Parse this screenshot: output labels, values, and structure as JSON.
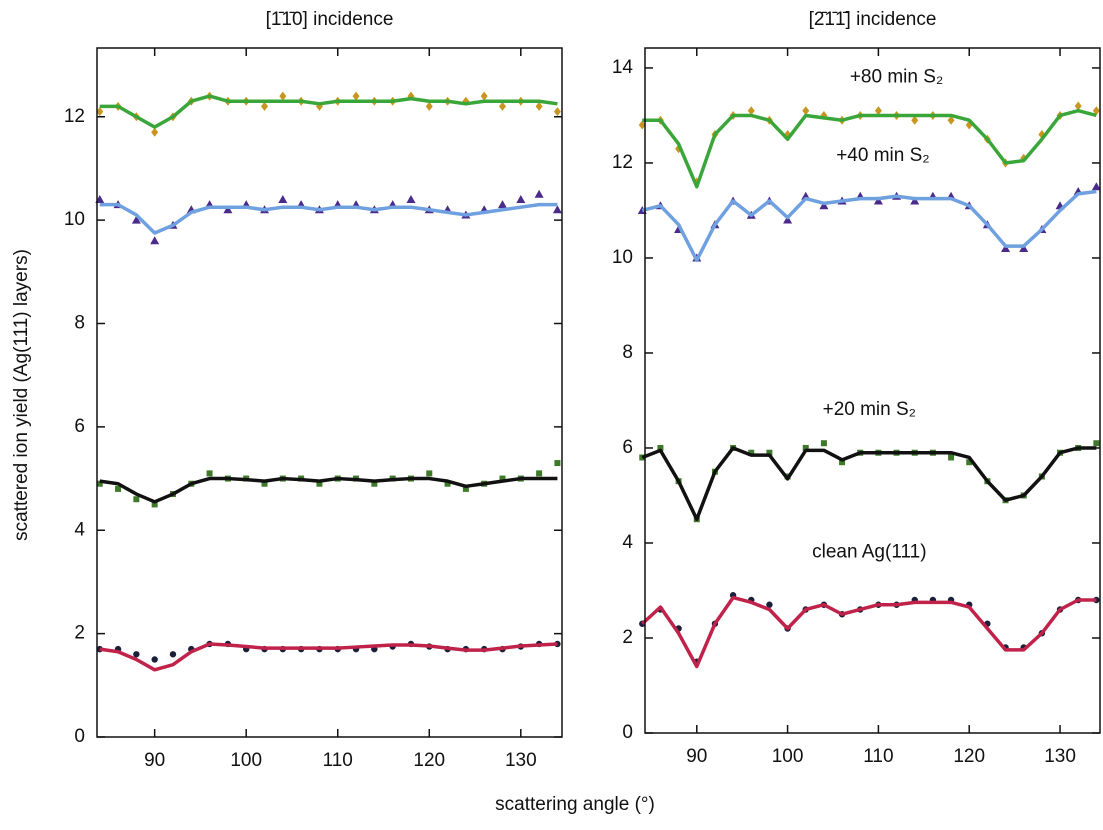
{
  "chart_data": [
    {
      "type": "line",
      "title": "[1̄1̄0] incidence",
      "ylabel": "scattered ion yield (Ag(111) layers)",
      "xlabel": "scattering angle (°)",
      "xlim": [
        83.7,
        134.5
      ],
      "ylim": [
        0,
        13.33
      ],
      "xticks": [
        90,
        100,
        110,
        120,
        130
      ],
      "yticks": [
        0,
        2,
        4,
        6,
        8,
        10,
        12
      ],
      "x": [
        84,
        86,
        88,
        90,
        92,
        94,
        96,
        98,
        100,
        102,
        104,
        106,
        108,
        110,
        112,
        114,
        116,
        118,
        120,
        122,
        124,
        126,
        128,
        130,
        132,
        134
      ],
      "series": [
        {
          "style": "scatter",
          "marker": "diamond",
          "color": "#c8961e",
          "values": [
            12.1,
            12.2,
            12.0,
            11.7,
            12.0,
            12.3,
            12.4,
            12.3,
            12.3,
            12.2,
            12.4,
            12.3,
            12.2,
            12.3,
            12.4,
            12.3,
            12.3,
            12.4,
            12.2,
            12.3,
            12.3,
            12.4,
            12.2,
            12.3,
            12.2,
            12.1
          ]
        },
        {
          "style": "line",
          "color": "#3aa63a",
          "values": [
            12.2,
            12.2,
            12.0,
            11.8,
            12.0,
            12.3,
            12.4,
            12.3,
            12.3,
            12.3,
            12.3,
            12.3,
            12.25,
            12.3,
            12.3,
            12.3,
            12.3,
            12.35,
            12.3,
            12.3,
            12.25,
            12.3,
            12.3,
            12.3,
            12.3,
            12.25
          ]
        },
        {
          "style": "scatter",
          "marker": "triangle",
          "color": "#4a2a8a",
          "values": [
            10.4,
            10.3,
            10.0,
            9.6,
            9.9,
            10.2,
            10.3,
            10.2,
            10.3,
            10.2,
            10.4,
            10.3,
            10.2,
            10.3,
            10.3,
            10.2,
            10.3,
            10.4,
            10.2,
            10.2,
            10.1,
            10.2,
            10.3,
            10.4,
            10.5,
            10.2
          ]
        },
        {
          "style": "line",
          "color": "#6fa0e0",
          "values": [
            10.3,
            10.3,
            10.1,
            9.75,
            9.9,
            10.15,
            10.25,
            10.25,
            10.25,
            10.2,
            10.25,
            10.25,
            10.2,
            10.25,
            10.25,
            10.2,
            10.25,
            10.25,
            10.2,
            10.15,
            10.1,
            10.15,
            10.2,
            10.25,
            10.3,
            10.3
          ]
        },
        {
          "style": "scatter",
          "marker": "square",
          "color": "#3f7a2a",
          "values": [
            4.9,
            4.8,
            4.6,
            4.5,
            4.7,
            4.9,
            5.1,
            5.0,
            5.0,
            4.9,
            5.0,
            5.0,
            4.9,
            5.0,
            5.0,
            4.9,
            5.0,
            5.0,
            5.1,
            4.9,
            4.8,
            4.9,
            5.0,
            5.0,
            5.1,
            5.3
          ]
        },
        {
          "style": "line",
          "color": "#111111",
          "values": [
            4.95,
            4.9,
            4.7,
            4.55,
            4.7,
            4.9,
            5.0,
            5.0,
            4.98,
            4.95,
            5.0,
            4.98,
            4.95,
            5.0,
            4.98,
            4.95,
            4.98,
            5.0,
            5.0,
            4.95,
            4.85,
            4.9,
            4.95,
            5.0,
            5.0,
            5.0
          ]
        },
        {
          "style": "scatter",
          "marker": "circle",
          "color": "#1a1f3a",
          "values": [
            1.7,
            1.7,
            1.6,
            1.5,
            1.6,
            1.7,
            1.8,
            1.8,
            1.7,
            1.7,
            1.7,
            1.7,
            1.7,
            1.7,
            1.7,
            1.7,
            1.75,
            1.8,
            1.75,
            1.7,
            1.7,
            1.7,
            1.7,
            1.75,
            1.8,
            1.8
          ]
        },
        {
          "style": "line",
          "color": "#c0224a",
          "values": [
            1.7,
            1.65,
            1.5,
            1.3,
            1.4,
            1.65,
            1.8,
            1.78,
            1.75,
            1.72,
            1.72,
            1.72,
            1.72,
            1.72,
            1.74,
            1.76,
            1.78,
            1.78,
            1.76,
            1.72,
            1.68,
            1.68,
            1.72,
            1.76,
            1.78,
            1.8
          ]
        }
      ]
    },
    {
      "type": "line",
      "title": "[2̄1̄1̄] incidence",
      "xlim": [
        84.3,
        134.4
      ],
      "ylim": [
        0,
        14.42
      ],
      "xticks": [
        90,
        100,
        110,
        120,
        130
      ],
      "yticks": [
        0,
        2,
        4,
        6,
        8,
        10,
        12,
        14
      ],
      "x": [
        84,
        86,
        88,
        90,
        92,
        94,
        96,
        98,
        100,
        102,
        104,
        106,
        108,
        110,
        112,
        114,
        116,
        118,
        120,
        122,
        124,
        126,
        128,
        130,
        132,
        134
      ],
      "annotations": [
        {
          "text": "+80 min S₂",
          "x": 112,
          "y": 13.8
        },
        {
          "text": "+40 min S₂",
          "x": 110.5,
          "y": 12.15
        },
        {
          "text": "+20 min S₂",
          "x": 109,
          "y": 6.8
        },
        {
          "text": "clean Ag(111)",
          "x": 109,
          "y": 3.8
        }
      ],
      "series": [
        {
          "style": "scatter",
          "marker": "diamond",
          "color": "#c8961e",
          "values": [
            12.8,
            12.9,
            12.3,
            11.6,
            12.6,
            13.0,
            13.1,
            12.9,
            12.6,
            13.1,
            13.0,
            12.9,
            13.0,
            13.1,
            13.0,
            12.9,
            13.0,
            12.9,
            12.8,
            12.5,
            12.0,
            12.1,
            12.6,
            13.0,
            13.2,
            13.1
          ]
        },
        {
          "style": "line",
          "color": "#3aa63a",
          "values": [
            12.9,
            12.9,
            12.4,
            11.5,
            12.6,
            13.0,
            13.0,
            12.9,
            12.5,
            13.0,
            12.95,
            12.9,
            13.0,
            13.0,
            13.0,
            13.0,
            13.0,
            13.0,
            12.9,
            12.5,
            12.0,
            12.05,
            12.5,
            13.0,
            13.1,
            13.0
          ]
        },
        {
          "style": "scatter",
          "marker": "triangle",
          "color": "#4a2a8a",
          "values": [
            11.0,
            11.1,
            10.6,
            10.0,
            10.7,
            11.2,
            10.9,
            11.2,
            10.8,
            11.3,
            11.1,
            11.2,
            11.3,
            11.2,
            11.3,
            11.2,
            11.3,
            11.3,
            11.1,
            10.7,
            10.2,
            10.2,
            10.6,
            11.1,
            11.4,
            11.5
          ]
        },
        {
          "style": "line",
          "color": "#6fa0e0",
          "values": [
            11.0,
            11.1,
            10.7,
            9.95,
            10.7,
            11.2,
            10.9,
            11.2,
            10.85,
            11.25,
            11.15,
            11.2,
            11.25,
            11.25,
            11.3,
            11.25,
            11.25,
            11.25,
            11.1,
            10.7,
            10.25,
            10.25,
            10.6,
            11.0,
            11.35,
            11.4
          ]
        },
        {
          "style": "scatter",
          "marker": "square",
          "color": "#3f7a2a",
          "values": [
            5.8,
            6.0,
            5.3,
            4.5,
            5.5,
            6.0,
            5.9,
            5.9,
            5.4,
            6.0,
            6.1,
            5.7,
            5.9,
            5.9,
            5.9,
            5.9,
            5.9,
            5.8,
            5.7,
            5.3,
            4.9,
            5.0,
            5.4,
            5.9,
            6.0,
            6.1
          ]
        },
        {
          "style": "line",
          "color": "#111111",
          "values": [
            5.8,
            5.95,
            5.3,
            4.5,
            5.5,
            6.0,
            5.85,
            5.85,
            5.35,
            5.95,
            5.95,
            5.75,
            5.9,
            5.9,
            5.9,
            5.9,
            5.9,
            5.9,
            5.8,
            5.3,
            4.9,
            5.0,
            5.4,
            5.9,
            6.0,
            6.0
          ]
        },
        {
          "style": "scatter",
          "marker": "circle",
          "color": "#1a1f3a",
          "values": [
            2.3,
            2.6,
            2.2,
            1.5,
            2.3,
            2.9,
            2.8,
            2.7,
            2.2,
            2.6,
            2.7,
            2.5,
            2.6,
            2.7,
            2.7,
            2.8,
            2.8,
            2.8,
            2.7,
            2.3,
            1.8,
            1.8,
            2.1,
            2.6,
            2.8,
            2.8
          ]
        },
        {
          "style": "line",
          "color": "#c0224a",
          "values": [
            2.3,
            2.65,
            2.1,
            1.4,
            2.3,
            2.85,
            2.75,
            2.6,
            2.2,
            2.6,
            2.7,
            2.5,
            2.6,
            2.7,
            2.7,
            2.75,
            2.75,
            2.75,
            2.65,
            2.2,
            1.75,
            1.75,
            2.1,
            2.6,
            2.8,
            2.8
          ]
        }
      ]
    }
  ]
}
